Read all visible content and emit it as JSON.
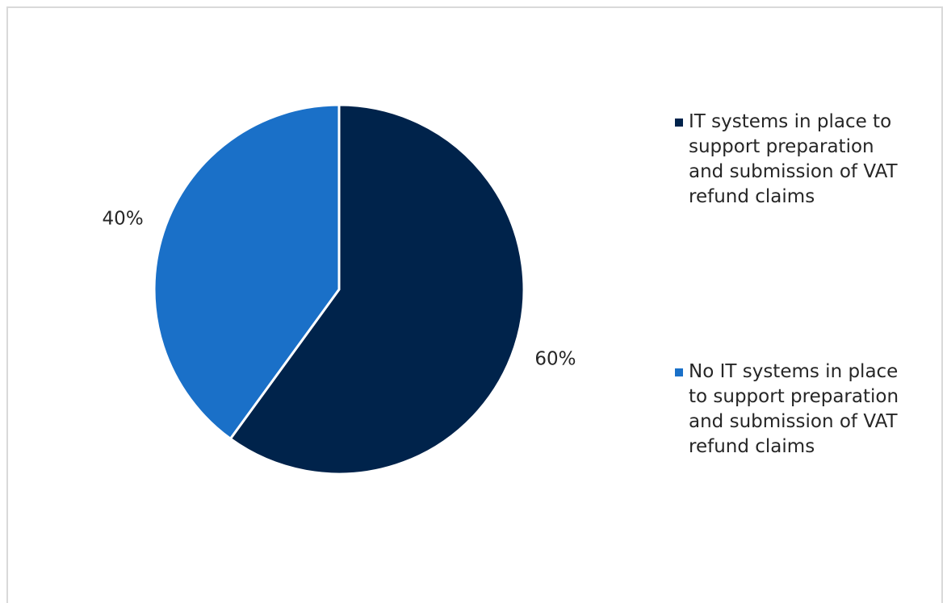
{
  "chart_data": {
    "type": "pie",
    "categories": [
      "IT systems in place to support preparation and submission of VAT refund claims",
      "No IT systems in place to support preparation and submission of VAT refund claims"
    ],
    "values": [
      60,
      40
    ],
    "value_labels": [
      "60%",
      "40%"
    ],
    "colors": [
      "#00234b",
      "#1a70c8"
    ]
  }
}
